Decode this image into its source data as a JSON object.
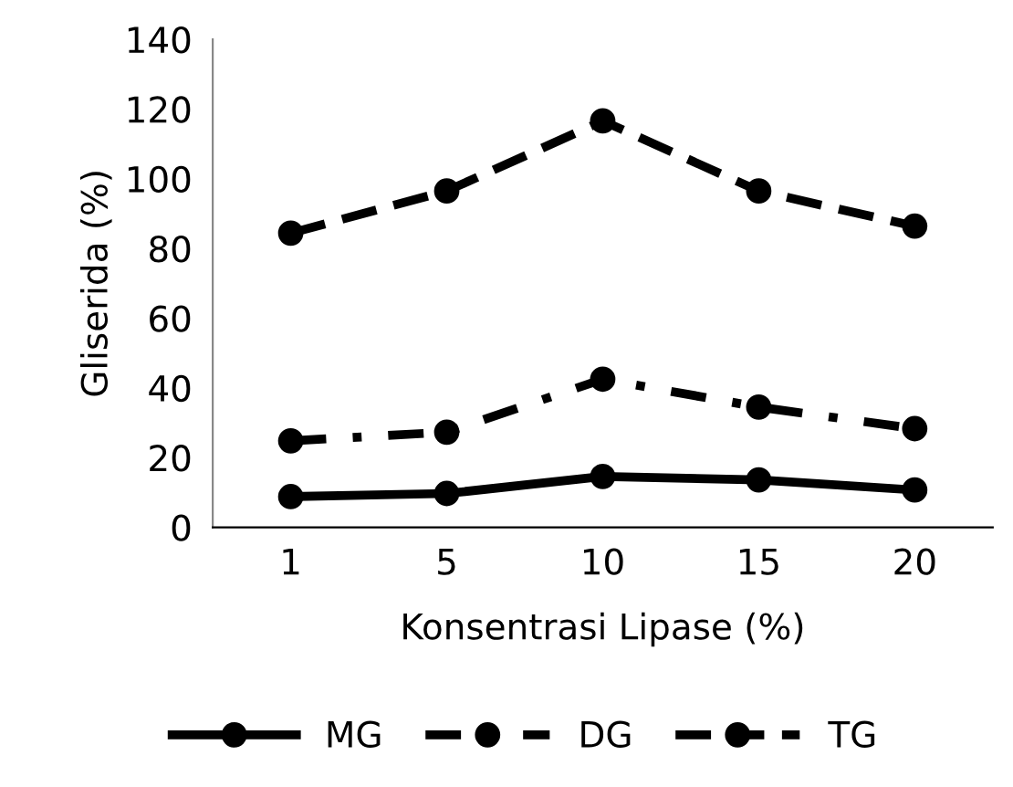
{
  "chart_data": {
    "type": "line",
    "xlabel": "Konsentrasi Lipase (%)",
    "ylabel": "Gliserida (%)",
    "categories": [
      "1",
      "5",
      "10",
      "15",
      "20"
    ],
    "series": [
      {
        "name": "MG",
        "color": "#000000",
        "line_style": "solid",
        "values": [
          8.8,
          9.7,
          14.6,
          13.6,
          10.7
        ]
      },
      {
        "name": "DG",
        "color": "#000000",
        "line_style": "dashdot",
        "values": [
          24.8,
          27.3,
          42.5,
          34.5,
          28.3
        ]
      },
      {
        "name": "TG",
        "color": "#000000",
        "line_style": "dashed",
        "values": [
          84.4,
          96.5,
          116.6,
          96.5,
          86.4
        ]
      }
    ],
    "ylim": [
      0,
      140
    ],
    "yticks": [
      0,
      20,
      40,
      60,
      80,
      100,
      120,
      140
    ],
    "grid": false,
    "legend": "bottom",
    "marker": "circle"
  }
}
